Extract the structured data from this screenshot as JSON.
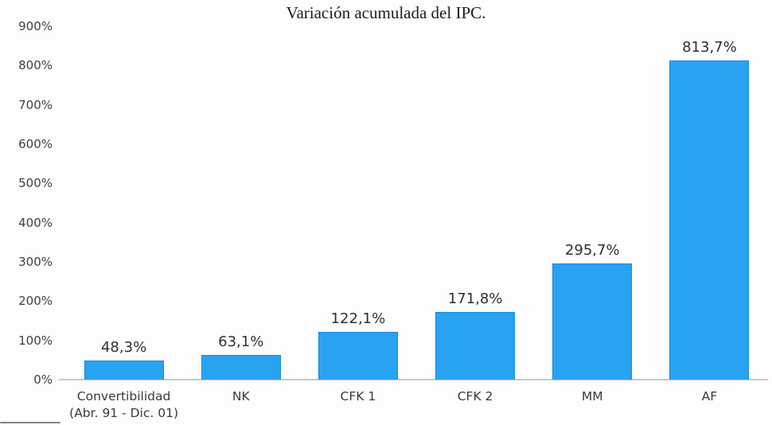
{
  "chart_data": {
    "type": "bar",
    "title": "Variación acumulada del IPC.",
    "categories": [
      "Convertibilidad (Abr. 91 - Dic. 01)",
      "NK",
      "CFK 1",
      "CFK 2",
      "MM",
      "AF"
    ],
    "category_lines": [
      [
        "Convertibilidad",
        "(Abr. 91 - Dic. 01)"
      ],
      [
        "NK"
      ],
      [
        "CFK 1"
      ],
      [
        "CFK 2"
      ],
      [
        "MM"
      ],
      [
        "AF"
      ]
    ],
    "values": [
      48.3,
      63.1,
      122.1,
      171.8,
      295.7,
      813.7
    ],
    "data_labels": [
      "48,3%",
      "63,1%",
      "122,1%",
      "171,8%",
      "295,7%",
      "813,7%"
    ],
    "xlabel": "",
    "ylabel": "",
    "ylim": [
      0,
      900
    ],
    "y_tick_values": [
      0,
      100,
      200,
      300,
      400,
      500,
      600,
      700,
      800,
      900
    ],
    "y_tick_labels": [
      "0%",
      "100%",
      "200%",
      "300%",
      "400%",
      "500%",
      "600%",
      "700%",
      "800%",
      "900%"
    ],
    "grid": false,
    "legend": "none",
    "colors": {
      "bar_fill": "#2aa2f2",
      "bar_border": "#1389e2",
      "axis_line": "#c9c9c9",
      "tick_text": "#3f3f3f",
      "data_label_text": "#2f2f2f",
      "title_text": "#181c27",
      "background": "#fdfdfe"
    }
  }
}
